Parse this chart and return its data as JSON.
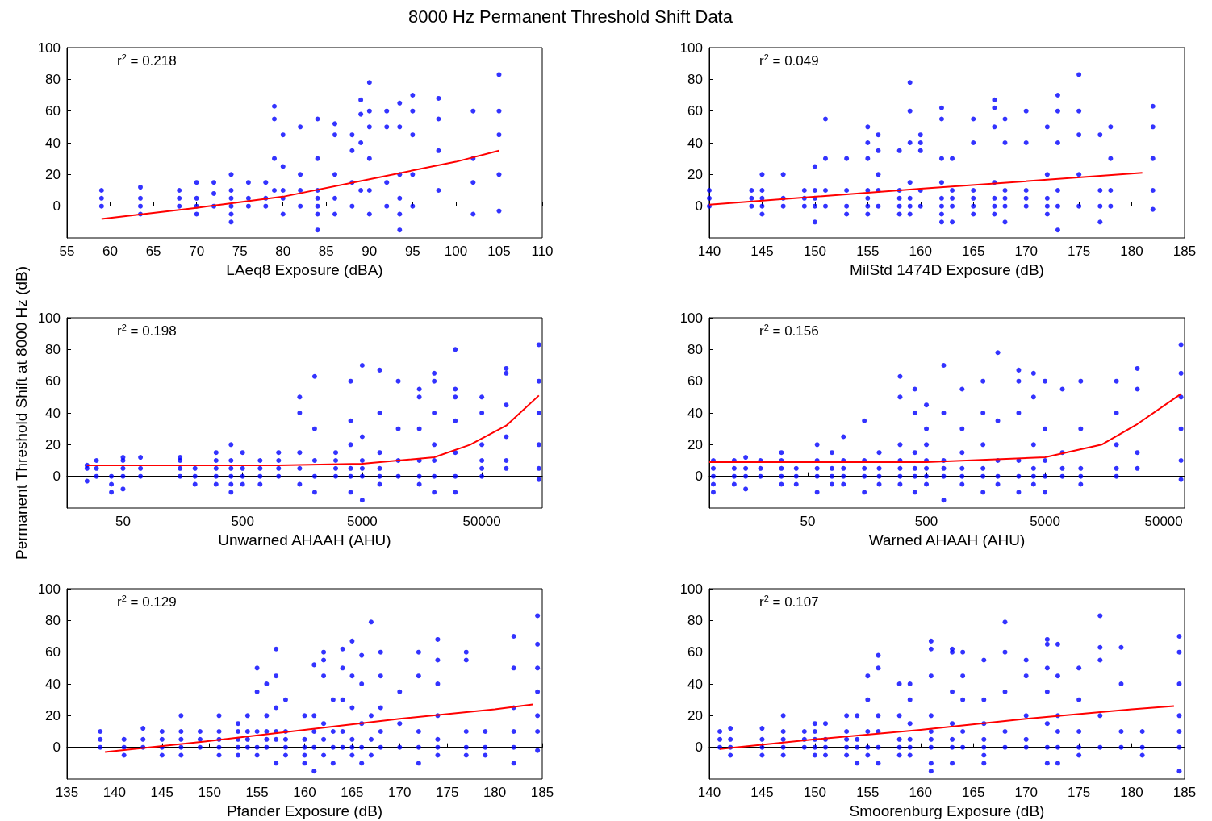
{
  "chart_data": [
    {
      "type": "scatter",
      "title": "8000 Hz Permanent Threshold Shift Data",
      "xlabel": "LAeq8 Exposure (dBA)",
      "annotations": [
        "r$^{2}$ = 0.218"
      ],
      "marker": "circle",
      "xlim": [
        55,
        110
      ],
      "xticks": [
        55,
        60,
        65,
        70,
        75,
        80,
        85,
        90,
        95,
        100,
        105,
        110
      ],
      "ylim": [
        -20,
        100
      ],
      "yticks": [
        0,
        20,
        40,
        60,
        80,
        100
      ],
      "series": [
        {
          "type": "scatter",
          "color": "#0000ff",
          "x": [
            59,
            59,
            59,
            63.5,
            63.5,
            63.5,
            63.5,
            68,
            68,
            68,
            70,
            70,
            70,
            70,
            72,
            72,
            72,
            74,
            74,
            74,
            74,
            74,
            74,
            76,
            76,
            76,
            78,
            78,
            78,
            79,
            79,
            79,
            79,
            80,
            80,
            80,
            80,
            80,
            82,
            82,
            82,
            82,
            84,
            84,
            84,
            84,
            84,
            84,
            84,
            86,
            86,
            86,
            86,
            86,
            88,
            88,
            88,
            88,
            89,
            89,
            89,
            89,
            90,
            90,
            90,
            90,
            90,
            90,
            92,
            92,
            92,
            92,
            93.5,
            93.5,
            93.5,
            93.5,
            93.5,
            93.5,
            95,
            95,
            95,
            95,
            95,
            98,
            98,
            98,
            98,
            102,
            102,
            102,
            102,
            105,
            105,
            105,
            105,
            105
          ],
          "values": [
            0,
            5,
            10,
            -5,
            0,
            5,
            12,
            0,
            5,
            10,
            -5,
            0,
            5,
            15,
            0,
            8,
            15,
            -10,
            -5,
            0,
            5,
            10,
            20,
            0,
            5,
            15,
            0,
            5,
            15,
            10,
            30,
            55,
            63,
            -5,
            5,
            10,
            25,
            45,
            0,
            10,
            20,
            50,
            -15,
            -5,
            0,
            5,
            10,
            30,
            55,
            -5,
            5,
            20,
            45,
            52,
            0,
            15,
            35,
            45,
            10,
            40,
            58,
            67,
            -5,
            10,
            30,
            50,
            60,
            78,
            0,
            15,
            50,
            60,
            -15,
            -5,
            5,
            20,
            50,
            65,
            0,
            20,
            45,
            60,
            70,
            10,
            35,
            55,
            68,
            -5,
            15,
            30,
            60,
            -3,
            20,
            45,
            60,
            83
          ]
        },
        {
          "type": "line",
          "marker": "none",
          "color": "#ff0000",
          "x": [
            59,
            70,
            80,
            90,
            100,
            105
          ],
          "values": [
            -8,
            -1,
            6,
            17,
            28,
            35
          ]
        }
      ]
    },
    {
      "type": "scatter",
      "xlabel": "MilStd 1474D Exposure (dB)",
      "annotations": [
        "r$^{2}$ = 0.049"
      ],
      "marker": "circle",
      "xlim": [
        140,
        185
      ],
      "xticks": [
        140,
        145,
        150,
        155,
        160,
        165,
        170,
        175,
        180,
        185
      ],
      "ylim": [
        -20,
        100
      ],
      "yticks": [
        0,
        20,
        40,
        60,
        80,
        100
      ],
      "series": [
        {
          "type": "scatter",
          "color": "#0000ff",
          "x": [
            140,
            140,
            140,
            144,
            144,
            144,
            145,
            145,
            145,
            145,
            145,
            147,
            147,
            147,
            149,
            149,
            149,
            150,
            150,
            150,
            150,
            150,
            151,
            151,
            151,
            151,
            153,
            153,
            153,
            153,
            155,
            155,
            155,
            155,
            155,
            155,
            155,
            156,
            156,
            156,
            156,
            156,
            158,
            158,
            158,
            158,
            158,
            159,
            159,
            159,
            159,
            159,
            159,
            159,
            160,
            160,
            160,
            160,
            160,
            162,
            162,
            162,
            162,
            162,
            162,
            162,
            162,
            163,
            163,
            163,
            163,
            163,
            165,
            165,
            165,
            165,
            165,
            165,
            167,
            167,
            167,
            167,
            167,
            167,
            167,
            168,
            168,
            168,
            168,
            168,
            168,
            170,
            170,
            170,
            170,
            170,
            172,
            172,
            172,
            172,
            172,
            173,
            173,
            173,
            173,
            173,
            173,
            175,
            175,
            175,
            175,
            175,
            177,
            177,
            177,
            177,
            178,
            178,
            178,
            178,
            182,
            182,
            182,
            182,
            182
          ],
          "values": [
            0,
            5,
            10,
            0,
            5,
            10,
            -5,
            0,
            5,
            10,
            20,
            0,
            5,
            20,
            0,
            5,
            10,
            -10,
            0,
            5,
            10,
            25,
            0,
            10,
            30,
            55,
            -5,
            0,
            10,
            30,
            -5,
            0,
            5,
            10,
            30,
            40,
            50,
            0,
            10,
            20,
            35,
            45,
            -5,
            0,
            5,
            10,
            35,
            -5,
            0,
            5,
            15,
            40,
            60,
            78,
            0,
            10,
            35,
            40,
            45,
            -10,
            -5,
            0,
            5,
            15,
            30,
            55,
            62,
            -10,
            0,
            5,
            10,
            30,
            -5,
            0,
            5,
            10,
            40,
            55,
            -5,
            0,
            5,
            15,
            50,
            62,
            67,
            -10,
            0,
            5,
            10,
            40,
            55,
            0,
            5,
            10,
            40,
            60,
            -5,
            0,
            5,
            20,
            50,
            -15,
            0,
            10,
            40,
            60,
            70,
            0,
            20,
            45,
            60,
            83,
            -10,
            0,
            10,
            45,
            0,
            10,
            30,
            50,
            -2,
            10,
            30,
            50,
            63
          ]
        },
        {
          "type": "line",
          "marker": "none",
          "color": "#ff0000",
          "x": [
            140,
            160,
            181
          ],
          "values": [
            1,
            11,
            21
          ]
        }
      ]
    },
    {
      "type": "scatter",
      "xlabel": "Unwarned AHAAH (AHU)",
      "ylabel": "Permanent Threshold Shift at 8000 Hz (dB)",
      "annotations": [
        "r$^{2}$ = 0.198"
      ],
      "marker": "circle",
      "log": "x",
      "xlim": [
        17,
        160000
      ],
      "xticks": [
        50,
        500,
        5000,
        50000
      ],
      "ylim": [
        -20,
        100
      ],
      "yticks": [
        0,
        20,
        40,
        60,
        80,
        100
      ],
      "series": [
        {
          "type": "scatter",
          "color": "#0000ff",
          "x": [
            25,
            25,
            25,
            30,
            30,
            30,
            40,
            40,
            40,
            50,
            50,
            50,
            50,
            50,
            70,
            70,
            70,
            150,
            150,
            150,
            150,
            200,
            200,
            200,
            300,
            300,
            300,
            300,
            300,
            400,
            400,
            400,
            400,
            400,
            400,
            500,
            500,
            500,
            500,
            700,
            700,
            700,
            700,
            1000,
            1000,
            1000,
            1000,
            1500,
            1500,
            1500,
            1500,
            1500,
            2000,
            2000,
            2000,
            2000,
            2000,
            3000,
            3000,
            3000,
            3000,
            4000,
            4000,
            4000,
            4000,
            4000,
            4000,
            5000,
            5000,
            5000,
            5000,
            5000,
            5000,
            7000,
            7000,
            7000,
            7000,
            7000,
            7000,
            10000,
            10000,
            10000,
            10000,
            15000,
            15000,
            15000,
            15000,
            15000,
            15000,
            20000,
            20000,
            20000,
            20000,
            20000,
            20000,
            20000,
            30000,
            30000,
            30000,
            30000,
            30000,
            30000,
            30000,
            50000,
            50000,
            50000,
            50000,
            50000,
            50000,
            80000,
            80000,
            80000,
            80000,
            80000,
            80000,
            150000,
            150000,
            150000,
            150000,
            150000,
            150000
          ],
          "values": [
            -3,
            5,
            7,
            0,
            5,
            10,
            -10,
            -5,
            0,
            -8,
            0,
            5,
            10,
            12,
            0,
            5,
            12,
            0,
            5,
            10,
            12,
            -5,
            0,
            5,
            -5,
            0,
            5,
            10,
            15,
            -10,
            -5,
            0,
            5,
            10,
            20,
            -5,
            0,
            5,
            15,
            -5,
            0,
            5,
            10,
            0,
            5,
            10,
            15,
            -5,
            5,
            15,
            40,
            50,
            -10,
            0,
            10,
            30,
            63,
            0,
            5,
            10,
            15,
            -10,
            0,
            5,
            20,
            35,
            60,
            -15,
            0,
            5,
            10,
            25,
            70,
            -5,
            0,
            5,
            15,
            40,
            67,
            0,
            10,
            30,
            60,
            -5,
            0,
            10,
            30,
            50,
            55,
            -10,
            0,
            10,
            20,
            40,
            60,
            65,
            -10,
            0,
            15,
            35,
            50,
            55,
            80,
            0,
            5,
            10,
            20,
            40,
            50,
            5,
            10,
            25,
            45,
            65,
            68,
            -2,
            5,
            20,
            40,
            60,
            83
          ]
        },
        {
          "type": "line",
          "marker": "none",
          "color": "#ff0000",
          "x": [
            25,
            1000,
            5000,
            20000,
            40000,
            80000,
            150000
          ],
          "values": [
            7,
            7,
            8,
            12,
            20,
            32,
            51
          ]
        }
      ]
    },
    {
      "type": "scatter",
      "xlabel": "Warned AHAAH (AHU)",
      "annotations": [
        "r$^{2}$ = 0.156"
      ],
      "marker": "circle",
      "log": "x",
      "xlim": [
        7.4,
        75000
      ],
      "xticks": [
        50,
        500,
        5000,
        50000
      ],
      "ylim": [
        -20,
        100
      ],
      "yticks": [
        0,
        20,
        40,
        60,
        80,
        100
      ],
      "series": [
        {
          "type": "scatter",
          "color": "#0000ff",
          "x": [
            8,
            8,
            8,
            8,
            8,
            12,
            12,
            12,
            12,
            15,
            15,
            15,
            15,
            20,
            20,
            20,
            30,
            30,
            30,
            30,
            30,
            40,
            40,
            40,
            60,
            60,
            60,
            60,
            60,
            80,
            80,
            80,
            80,
            100,
            100,
            100,
            100,
            100,
            150,
            150,
            150,
            150,
            150,
            200,
            200,
            200,
            200,
            300,
            300,
            300,
            300,
            300,
            300,
            300,
            400,
            400,
            400,
            400,
            400,
            400,
            500,
            500,
            500,
            500,
            500,
            500,
            500,
            700,
            700,
            700,
            700,
            700,
            700,
            1000,
            1000,
            1000,
            1000,
            1000,
            1000,
            1500,
            1500,
            1500,
            1500,
            1500,
            1500,
            2000,
            2000,
            2000,
            2000,
            2000,
            3000,
            3000,
            3000,
            3000,
            3000,
            3000,
            4000,
            4000,
            4000,
            4000,
            4000,
            4000,
            5000,
            5000,
            5000,
            5000,
            5000,
            7000,
            7000,
            7000,
            7000,
            10000,
            10000,
            10000,
            10000,
            10000,
            20000,
            20000,
            20000,
            20000,
            20000,
            30000,
            30000,
            30000,
            30000,
            70000,
            70000,
            70000,
            70000,
            70000,
            70000
          ],
          "values": [
            -10,
            -5,
            0,
            5,
            10,
            -5,
            0,
            5,
            10,
            -8,
            0,
            5,
            12,
            0,
            5,
            10,
            -5,
            0,
            5,
            10,
            15,
            -5,
            0,
            5,
            -10,
            0,
            5,
            10,
            20,
            -5,
            0,
            5,
            15,
            -5,
            0,
            5,
            10,
            25,
            -10,
            0,
            5,
            10,
            35,
            -5,
            0,
            5,
            15,
            -5,
            0,
            5,
            10,
            20,
            50,
            63,
            -10,
            0,
            5,
            15,
            40,
            55,
            -5,
            0,
            5,
            10,
            20,
            30,
            45,
            -15,
            0,
            5,
            10,
            40,
            70,
            -5,
            0,
            5,
            15,
            30,
            55,
            -10,
            0,
            5,
            20,
            40,
            60,
            -5,
            0,
            10,
            35,
            78,
            -10,
            0,
            10,
            40,
            60,
            67,
            -5,
            0,
            5,
            20,
            50,
            65,
            -10,
            0,
            10,
            30,
            60,
            0,
            5,
            15,
            55,
            -5,
            0,
            5,
            30,
            60,
            0,
            5,
            20,
            40,
            60,
            5,
            15,
            55,
            68,
            -2,
            10,
            30,
            50,
            65,
            83
          ]
        },
        {
          "type": "line",
          "marker": "none",
          "color": "#ff0000",
          "x": [
            7.4,
            500,
            5000,
            15000,
            30000,
            70000
          ],
          "values": [
            9,
            9,
            12,
            20,
            33,
            52
          ]
        }
      ]
    },
    {
      "type": "scatter",
      "xlabel": "Pfander Exposure (dB)",
      "annotations": [
        "r$^{2}$ = 0.129"
      ],
      "marker": "circle",
      "xlim": [
        135,
        185
      ],
      "xticks": [
        135,
        140,
        145,
        150,
        155,
        160,
        165,
        170,
        175,
        180,
        185
      ],
      "ylim": [
        -20,
        100
      ],
      "yticks": [
        0,
        20,
        40,
        60,
        80,
        100
      ],
      "series": [
        {
          "type": "scatter",
          "color": "#0000ff",
          "x": [
            138.5,
            138.5,
            138.5,
            141,
            141,
            141,
            143,
            143,
            143,
            145,
            145,
            145,
            145,
            147,
            147,
            147,
            147,
            147,
            149,
            149,
            149,
            151,
            151,
            151,
            151,
            151,
            153,
            153,
            153,
            153,
            153,
            154,
            154,
            154,
            154,
            155,
            155,
            155,
            155,
            155,
            156,
            156,
            156,
            156,
            156,
            157,
            157,
            157,
            157,
            157,
            157,
            158,
            158,
            158,
            158,
            158,
            160,
            160,
            160,
            160,
            160,
            161,
            161,
            161,
            161,
            161,
            162,
            162,
            162,
            162,
            162,
            162,
            163,
            163,
            163,
            163,
            164,
            164,
            164,
            164,
            164,
            165,
            165,
            165,
            165,
            165,
            165,
            166,
            166,
            166,
            166,
            166,
            167,
            167,
            167,
            167,
            168,
            168,
            168,
            168,
            168,
            170,
            170,
            170,
            172,
            172,
            172,
            172,
            172,
            174,
            174,
            174,
            174,
            174,
            174,
            174,
            177,
            177,
            177,
            177,
            177,
            179,
            179,
            179,
            182,
            182,
            182,
            182,
            182,
            182,
            184.5,
            184.5,
            184.5,
            184.5,
            184.5,
            184.5,
            184.5
          ],
          "values": [
            0,
            5,
            10,
            -5,
            0,
            5,
            0,
            5,
            12,
            -5,
            0,
            5,
            10,
            -5,
            0,
            5,
            10,
            20,
            0,
            5,
            10,
            -5,
            0,
            5,
            10,
            20,
            -5,
            0,
            5,
            10,
            15,
            0,
            5,
            10,
            20,
            -5,
            0,
            10,
            35,
            50,
            0,
            5,
            10,
            20,
            40,
            -10,
            5,
            10,
            25,
            45,
            62,
            -5,
            0,
            5,
            10,
            30,
            -10,
            -5,
            0,
            5,
            20,
            -15,
            0,
            10,
            20,
            52,
            -5,
            5,
            15,
            45,
            55,
            60,
            -10,
            0,
            10,
            30,
            0,
            10,
            30,
            50,
            62,
            -5,
            0,
            5,
            25,
            45,
            67,
            -10,
            0,
            15,
            40,
            58,
            -5,
            5,
            20,
            79,
            0,
            10,
            25,
            45,
            60,
            0,
            15,
            35,
            -10,
            0,
            10,
            45,
            60,
            -5,
            0,
            5,
            20,
            40,
            55,
            68,
            -5,
            0,
            10,
            55,
            60,
            -5,
            0,
            10,
            -10,
            0,
            10,
            25,
            50,
            70,
            -2,
            10,
            20,
            35,
            50,
            65,
            83
          ]
        },
        {
          "type": "line",
          "marker": "none",
          "color": "#ff0000",
          "x": [
            139,
            150,
            160,
            170,
            180,
            184
          ],
          "values": [
            -3,
            4,
            11,
            18,
            24,
            27
          ]
        }
      ]
    },
    {
      "type": "scatter",
      "xlabel": "Smoorenburg Exposure (dB)",
      "annotations": [
        "r$^{2}$ = 0.107"
      ],
      "marker": "circle",
      "xlim": [
        140,
        185
      ],
      "xticks": [
        140,
        145,
        150,
        155,
        160,
        165,
        170,
        175,
        180,
        185
      ],
      "ylim": [
        -20,
        100
      ],
      "yticks": [
        0,
        20,
        40,
        60,
        80,
        100
      ],
      "series": [
        {
          "type": "scatter",
          "color": "#0000ff",
          "x": [
            141,
            141,
            141,
            142,
            142,
            142,
            142,
            145,
            145,
            145,
            145,
            147,
            147,
            147,
            147,
            147,
            149,
            149,
            149,
            150,
            150,
            150,
            150,
            150,
            151,
            151,
            151,
            151,
            153,
            153,
            153,
            153,
            153,
            154,
            154,
            154,
            154,
            155,
            155,
            155,
            155,
            155,
            156,
            156,
            156,
            156,
            156,
            156,
            158,
            158,
            158,
            158,
            158,
            159,
            159,
            159,
            159,
            159,
            159,
            161,
            161,
            161,
            161,
            161,
            161,
            161,
            161,
            161,
            163,
            163,
            163,
            163,
            163,
            163,
            163,
            164,
            164,
            164,
            164,
            164,
            166,
            166,
            166,
            166,
            166,
            166,
            166,
            168,
            168,
            168,
            168,
            168,
            170,
            170,
            170,
            170,
            170,
            172,
            172,
            172,
            172,
            172,
            172,
            172,
            173,
            173,
            173,
            173,
            173,
            173,
            175,
            175,
            175,
            175,
            175,
            177,
            177,
            177,
            177,
            177,
            179,
            179,
            179,
            179,
            181,
            181,
            181,
            184.5,
            184.5,
            184.5,
            184.5,
            184.5,
            184.5,
            184.5
          ],
          "values": [
            0,
            5,
            10,
            -5,
            0,
            5,
            12,
            -5,
            0,
            5,
            12,
            -5,
            0,
            5,
            10,
            20,
            0,
            5,
            10,
            -5,
            0,
            5,
            10,
            15,
            -5,
            0,
            5,
            15,
            -5,
            0,
            5,
            10,
            20,
            -10,
            0,
            5,
            20,
            -5,
            0,
            10,
            30,
            45,
            -10,
            0,
            10,
            20,
            50,
            58,
            -5,
            0,
            5,
            20,
            40,
            -5,
            0,
            5,
            15,
            30,
            40,
            -15,
            -10,
            0,
            5,
            10,
            20,
            45,
            62,
            67,
            -10,
            0,
            5,
            15,
            35,
            62,
            60,
            0,
            10,
            30,
            45,
            60,
            -10,
            -5,
            0,
            5,
            15,
            30,
            55,
            0,
            10,
            35,
            60,
            79,
            0,
            5,
            20,
            45,
            55,
            -10,
            0,
            15,
            35,
            50,
            68,
            65,
            -10,
            0,
            10,
            20,
            45,
            65,
            -5,
            0,
            10,
            30,
            50,
            0,
            20,
            55,
            63,
            83,
            0,
            10,
            40,
            63,
            -5,
            0,
            10,
            -15,
            0,
            10,
            20,
            40,
            60,
            70
          ]
        },
        {
          "type": "line",
          "marker": "none",
          "color": "#ff0000",
          "x": [
            141,
            150,
            160,
            170,
            180,
            184
          ],
          "values": [
            -1,
            5,
            11,
            18,
            24,
            26
          ]
        }
      ]
    }
  ]
}
